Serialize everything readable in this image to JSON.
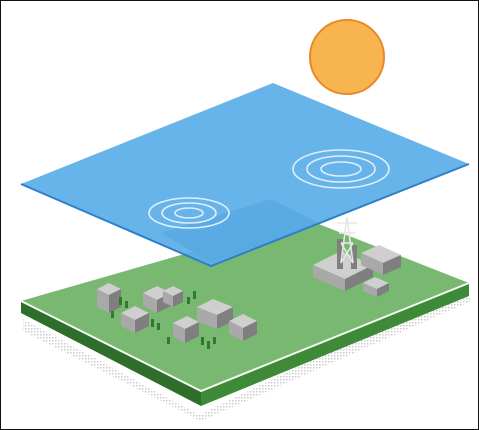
{
  "colors": {
    "sky": "#ffffff",
    "sun_fill": "#f8b44e",
    "sun_edge": "#e8892a",
    "water_fill": "#5aaee8",
    "water_edge": "#2f7fc9",
    "water_shadow": "#3b6fa3",
    "ripple": "#dfeefa",
    "ground_top": "#78b870",
    "ground_front": "#2f6e2a",
    "ground_side": "#3f8a38",
    "ground_edge": "#f3f8f1",
    "shadow": "#d7d7d7",
    "building_light": "#cfcfcf",
    "building_mid": "#a9a9a9",
    "building_dark": "#7f7f7f",
    "tree": "#2f7a2f",
    "tower": "#e6e6e6"
  },
  "scene": {
    "sun_icon": "sun-icon",
    "cloud_layer_icon": "cloud-layer-icon",
    "ground_icon": "ground-block-icon",
    "town_icon": "town-buildings-icon",
    "factory_icon": "factory-icon",
    "tower_icon": "transmission-tower-icon",
    "ripple_icon": "ripple-icon"
  }
}
